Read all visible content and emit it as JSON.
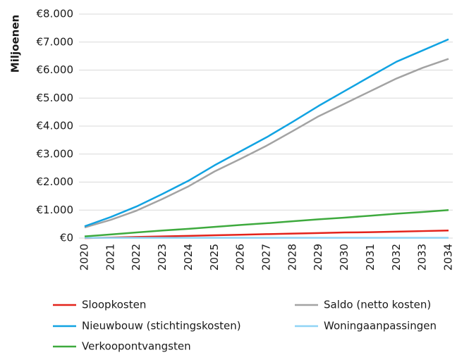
{
  "chart_data": {
    "type": "line",
    "y_label": "Miljoenen",
    "categories": [
      "2020",
      "2021",
      "2022",
      "2023",
      "2024",
      "2025",
      "2026",
      "2027",
      "2028",
      "2029",
      "2030",
      "2031",
      "2032",
      "2033",
      "2034"
    ],
    "series": [
      {
        "name": "Sloopkosten",
        "color": "#e3231b",
        "values": [
          0,
          20,
          40,
          60,
          80,
          100,
          120,
          140,
          160,
          180,
          200,
          210,
          230,
          250,
          270
        ]
      },
      {
        "name": "Saldo (netto kosten)",
        "color": "#a3a3a3",
        "values": [
          380,
          650,
          980,
          1400,
          1850,
          2380,
          2830,
          3300,
          3820,
          4350,
          4800,
          5250,
          5700,
          6080,
          6400
        ]
      },
      {
        "name": "Nieuwbouw (stichtingskosten)",
        "color": "#11a3e2",
        "values": [
          420,
          750,
          1130,
          1580,
          2050,
          2600,
          3100,
          3600,
          4150,
          4720,
          5250,
          5780,
          6300,
          6700,
          7100
        ]
      },
      {
        "name": "Woningaanpassingen",
        "color": "#8fd4f5",
        "values": [
          10,
          10,
          10,
          10,
          10,
          10,
          10,
          10,
          10,
          10,
          10,
          10,
          10,
          10,
          10
        ]
      },
      {
        "name": "Verkoopontvangsten",
        "color": "#3eaa3e",
        "values": [
          60,
          130,
          200,
          270,
          330,
          400,
          470,
          530,
          600,
          670,
          730,
          800,
          870,
          930,
          1000
        ]
      }
    ],
    "ylim": [
      0,
      8000
    ],
    "yticks": [
      {
        "value": 0,
        "label": "€0"
      },
      {
        "value": 1000,
        "label": "€1.000"
      },
      {
        "value": 2000,
        "label": "€2.000"
      },
      {
        "value": 3000,
        "label": "€3.000"
      },
      {
        "value": 4000,
        "label": "€4.000"
      },
      {
        "value": 5000,
        "label": "€5.000"
      },
      {
        "value": 6000,
        "label": "€6.000"
      },
      {
        "value": 7000,
        "label": "€7.000"
      },
      {
        "value": 8000,
        "label": "€8.000"
      }
    ],
    "grid": true
  }
}
